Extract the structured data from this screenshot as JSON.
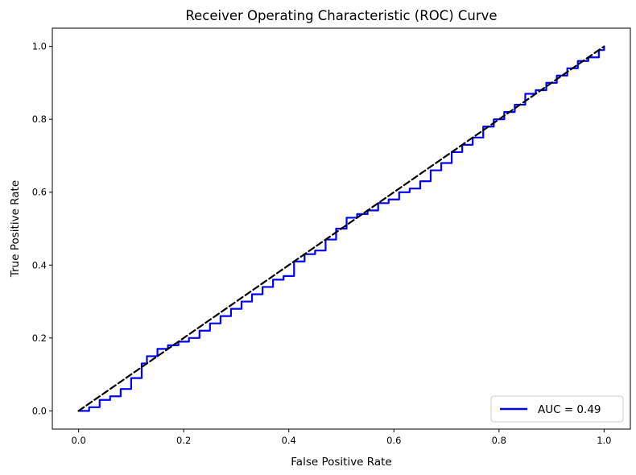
{
  "chart_data": {
    "type": "line",
    "title": "Receiver Operating Characteristic (ROC) Curve",
    "xlabel": "False Positive Rate",
    "ylabel": "True Positive Rate",
    "xlim": [
      -0.05,
      1.05
    ],
    "ylim": [
      -0.05,
      1.05
    ],
    "xticks": [
      "0.0",
      "0.2",
      "0.4",
      "0.6",
      "0.8",
      "1.0"
    ],
    "yticks": [
      "0.0",
      "0.2",
      "0.4",
      "0.6",
      "0.8",
      "1.0"
    ],
    "grid": false,
    "legend_position": "lower-right",
    "series": [
      {
        "name": "AUC = 0.49",
        "color": "#0000ff",
        "style": "solid",
        "x": [
          0.0,
          0.02,
          0.04,
          0.06,
          0.08,
          0.1,
          0.12,
          0.13,
          0.15,
          0.17,
          0.19,
          0.21,
          0.23,
          0.25,
          0.27,
          0.29,
          0.31,
          0.33,
          0.35,
          0.37,
          0.39,
          0.41,
          0.43,
          0.45,
          0.47,
          0.49,
          0.51,
          0.53,
          0.55,
          0.57,
          0.59,
          0.61,
          0.63,
          0.65,
          0.67,
          0.69,
          0.71,
          0.73,
          0.75,
          0.77,
          0.79,
          0.81,
          0.83,
          0.85,
          0.87,
          0.89,
          0.91,
          0.93,
          0.95,
          0.97,
          0.99,
          1.0
        ],
        "y": [
          0.0,
          0.01,
          0.03,
          0.04,
          0.06,
          0.09,
          0.13,
          0.15,
          0.17,
          0.18,
          0.19,
          0.2,
          0.22,
          0.24,
          0.26,
          0.28,
          0.3,
          0.32,
          0.34,
          0.36,
          0.37,
          0.41,
          0.43,
          0.44,
          0.47,
          0.5,
          0.53,
          0.54,
          0.55,
          0.57,
          0.58,
          0.6,
          0.61,
          0.63,
          0.66,
          0.68,
          0.71,
          0.73,
          0.75,
          0.78,
          0.8,
          0.82,
          0.84,
          0.87,
          0.88,
          0.9,
          0.92,
          0.94,
          0.96,
          0.97,
          0.99,
          1.0
        ]
      },
      {
        "name": "",
        "color": "#000000",
        "style": "dashed",
        "x": [
          0.0,
          1.0
        ],
        "y": [
          0.0,
          1.0
        ]
      }
    ]
  }
}
